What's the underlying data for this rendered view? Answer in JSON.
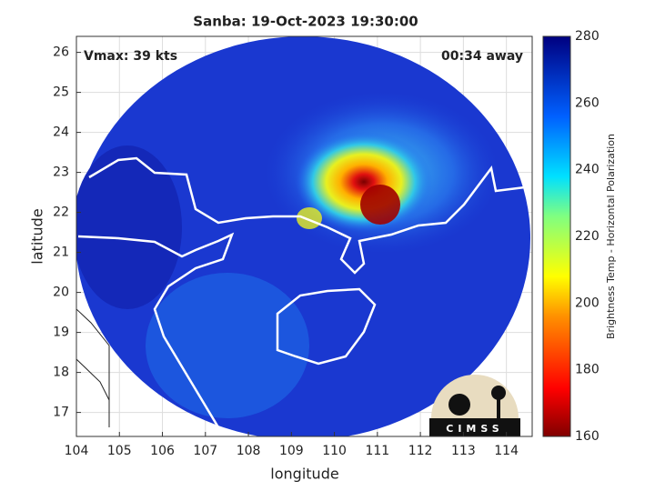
{
  "title": "Sanba: 19-Oct-2023 19:30:00",
  "annotations": {
    "vmax": "Vmax: 39 kts",
    "time": "00:34 away"
  },
  "x_axis": {
    "label": "longitude",
    "lim": [
      104,
      114.6
    ],
    "ticks": [
      104,
      105,
      106,
      107,
      108,
      109,
      110,
      111,
      112,
      113,
      114
    ]
  },
  "y_axis": {
    "label": "latitude",
    "lim": [
      16.4,
      26.4
    ],
    "ticks": [
      17,
      18,
      19,
      20,
      21,
      22,
      23,
      24,
      25,
      26
    ]
  },
  "colorbar": {
    "label": "Brightness Temp - Horizontal Polarization",
    "lim": [
      160,
      280
    ],
    "ticks": [
      160,
      180,
      200,
      220,
      240,
      260,
      280
    ]
  },
  "logo": "CIMSS"
}
